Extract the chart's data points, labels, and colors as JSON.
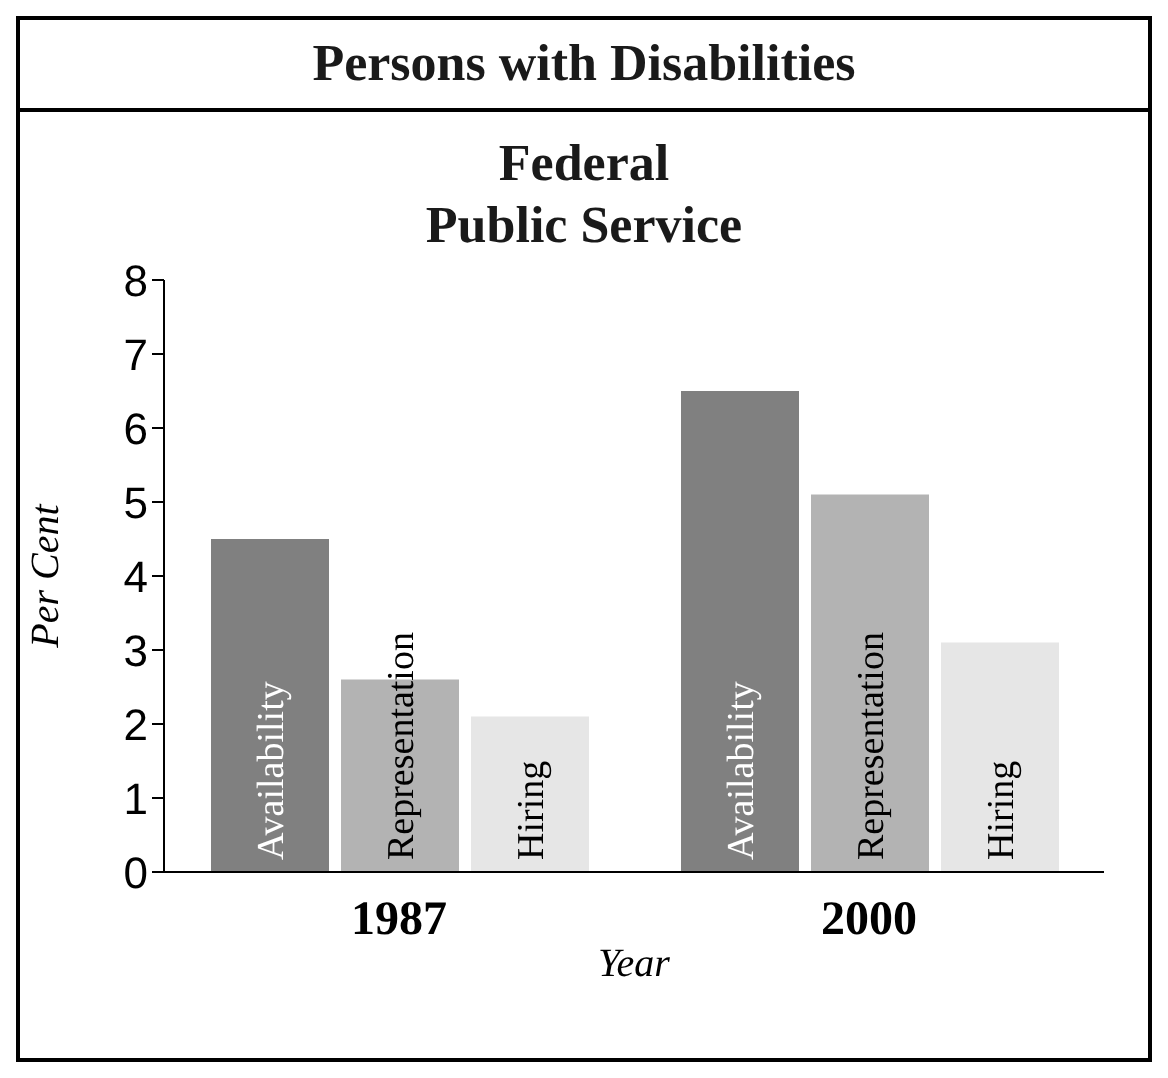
{
  "chart_data": {
    "type": "bar",
    "title": "Persons with Disabilities",
    "subtitle": "Federal\nPublic Service",
    "xlabel": "Year",
    "ylabel": "Per Cent",
    "categories": [
      "1987",
      "2000"
    ],
    "series": [
      {
        "name": "Availability",
        "color": "#808080",
        "values": [
          4.5,
          6.5
        ]
      },
      {
        "name": "Representation",
        "color": "#b3b3b3",
        "values": [
          2.6,
          5.1
        ]
      },
      {
        "name": "Hiring",
        "color": "#e6e6e6",
        "values": [
          2.1,
          3.1
        ]
      }
    ],
    "ylim": [
      0,
      8
    ],
    "yticks": [
      0,
      1,
      2,
      3,
      4,
      5,
      6,
      7,
      8
    ],
    "grid": false,
    "legend": false
  }
}
